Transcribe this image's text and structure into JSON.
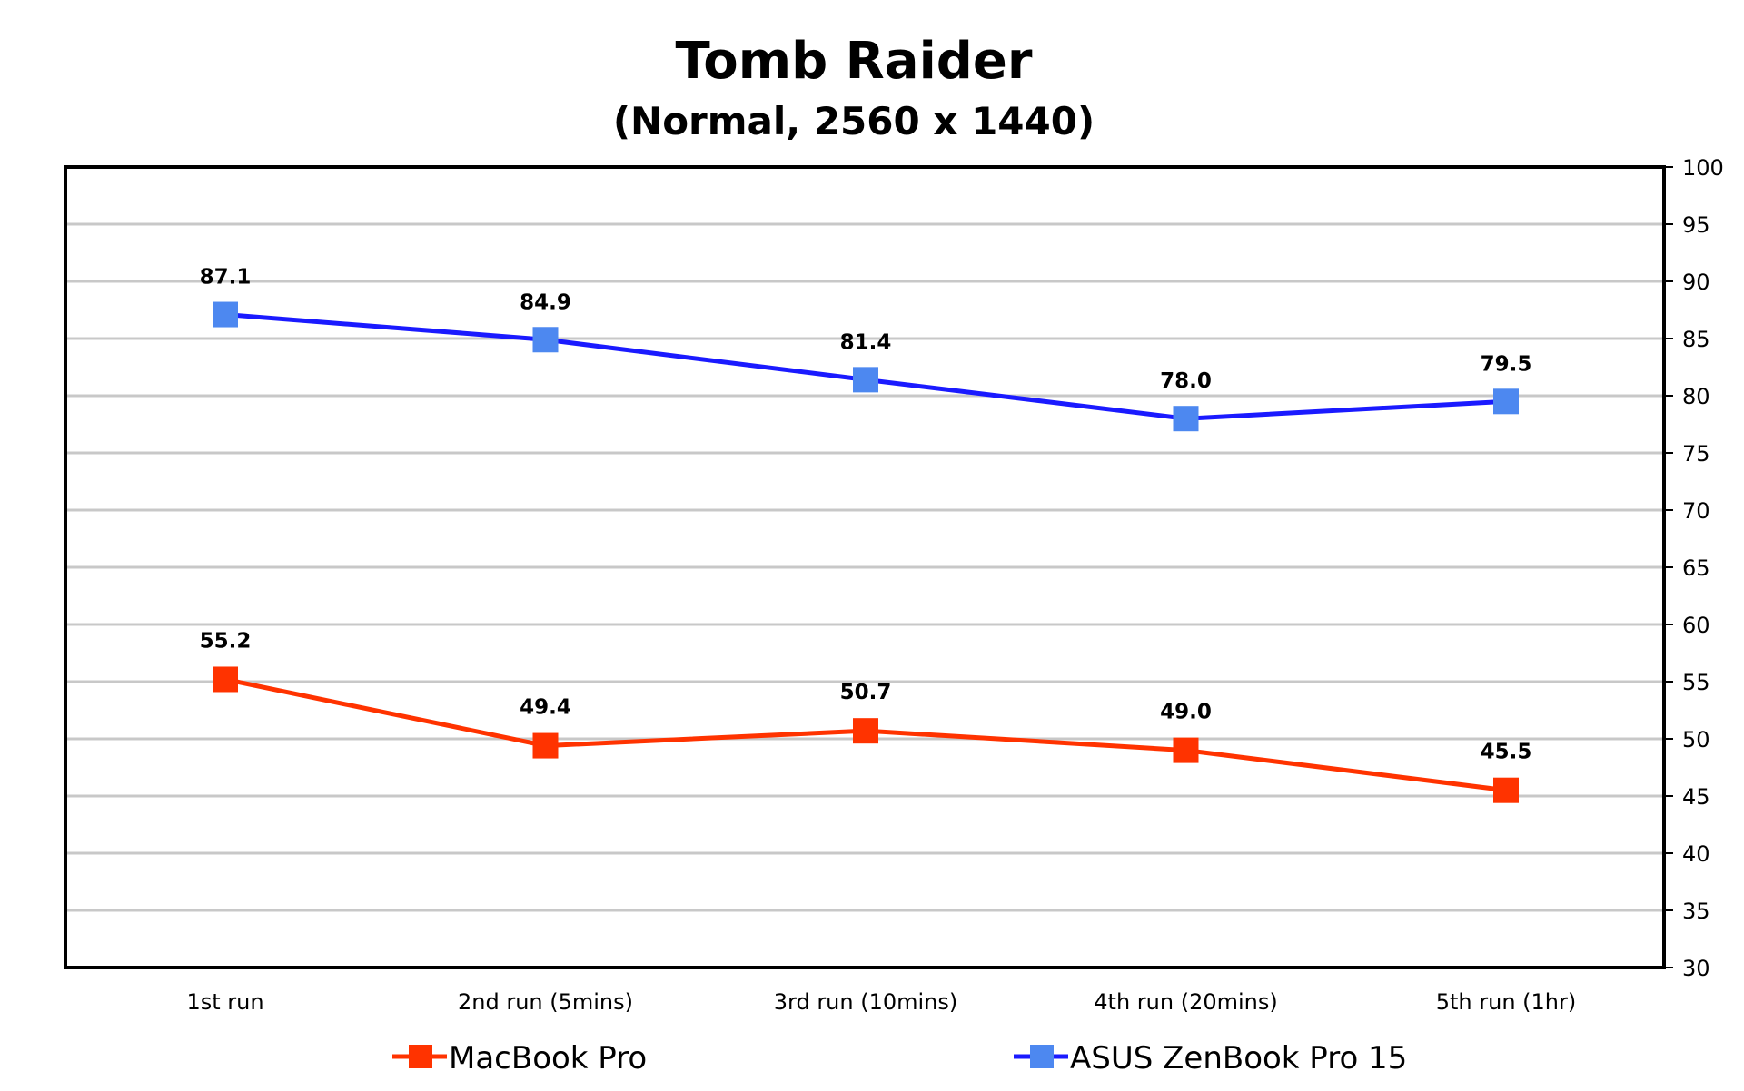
{
  "chart_data": {
    "type": "line",
    "title": "Tomb Raider",
    "subtitle": "(Normal, 2560 x 1440)",
    "categories": [
      "1st run",
      "2nd run (5mins)",
      "3rd run (10mins)",
      "4th run (20mins)",
      "5th run (1hr)"
    ],
    "series": [
      {
        "name": "MacBook Pro",
        "values": [
          55.2,
          49.4,
          50.7,
          49.0,
          45.5
        ],
        "labels": [
          "55.2",
          "49.4",
          "50.7",
          "49.0",
          "45.5"
        ],
        "color": "#FF3300"
      },
      {
        "name": "ASUS ZenBook Pro 15",
        "values": [
          87.1,
          84.9,
          81.4,
          78.0,
          79.5
        ],
        "labels": [
          "87.1",
          "84.9",
          "81.4",
          "78.0",
          "79.5"
        ],
        "color": "#1A1AFF",
        "marker_color": "#4D88F0"
      }
    ],
    "ylim": [
      30,
      100
    ],
    "y_ticks": [
      "100",
      "95",
      "90",
      "85",
      "80",
      "75",
      "70",
      "65",
      "60",
      "55",
      "50",
      "45",
      "40",
      "35",
      "30"
    ],
    "y_axis_side": "right",
    "grid": true,
    "legend_position": "bottom"
  }
}
